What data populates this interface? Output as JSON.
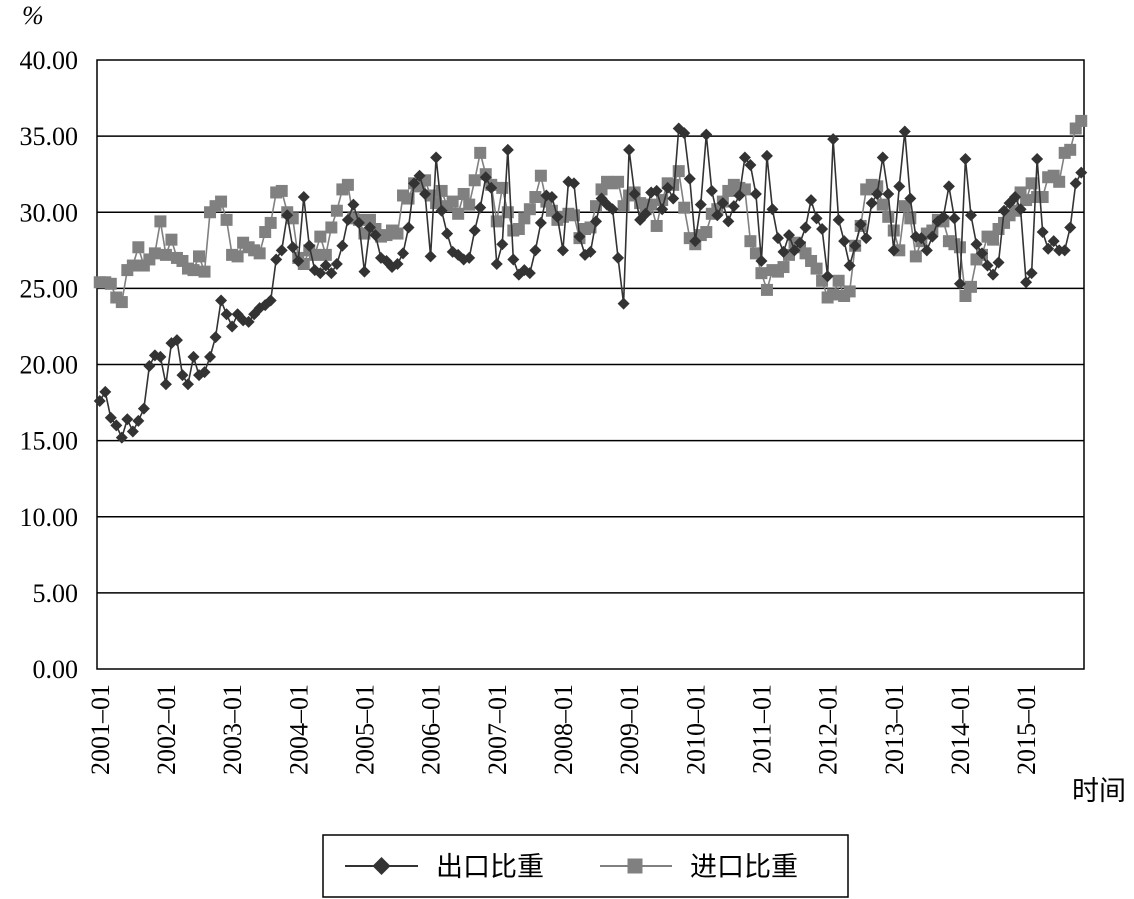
{
  "chart_data": {
    "type": "line",
    "ylabel": "%",
    "xlabel": "时间",
    "ylim": [
      0,
      40
    ],
    "y_ticks": [
      "0.00",
      "5.00",
      "10.00",
      "15.00",
      "20.00",
      "25.00",
      "30.00",
      "35.00",
      "40.00"
    ],
    "x_start": "2001-01",
    "x_end": "2015-09",
    "x_ticks": [
      "2001–01",
      "2002–01",
      "2003–01",
      "2004–01",
      "2005–01",
      "2006–01",
      "2007–01",
      "2008–01",
      "2009–01",
      "2010–01",
      "2011–01",
      "2012–01",
      "2013–01",
      "2014–01",
      "2015–01"
    ],
    "grid": "horizontal",
    "legend_position": "bottom",
    "series": [
      {
        "name": "出口比重",
        "marker": "diamond",
        "color": "#333333",
        "values": [
          17.6,
          18.2,
          16.5,
          16.0,
          15.2,
          16.4,
          15.6,
          16.3,
          17.1,
          19.9,
          20.6,
          20.5,
          18.7,
          21.4,
          21.6,
          19.3,
          18.7,
          20.5,
          19.3,
          19.5,
          20.5,
          21.8,
          24.2,
          23.3,
          22.5,
          23.3,
          22.9,
          22.8,
          23.3,
          23.7,
          23.9,
          24.2,
          26.9,
          27.5,
          29.8,
          27.7,
          26.8,
          31.0,
          27.8,
          26.2,
          26.0,
          26.5,
          26.0,
          26.6,
          27.8,
          29.5,
          30.5,
          29.3,
          26.1,
          29.0,
          28.5,
          27.0,
          26.8,
          26.4,
          26.6,
          27.3,
          29.0,
          31.9,
          32.4,
          31.2,
          27.1,
          33.6,
          30.1,
          28.6,
          27.4,
          27.2,
          26.9,
          27.0,
          28.8,
          30.3,
          32.3,
          31.6,
          26.6,
          27.9,
          34.1,
          26.9,
          25.9,
          26.2,
          26.0,
          27.5,
          29.3,
          31.1,
          31.0,
          29.7,
          27.5,
          32.0,
          31.9,
          28.4,
          27.2,
          27.4,
          29.4,
          30.9,
          30.5,
          30.2,
          27.0,
          24.0,
          34.1,
          31.2,
          29.5,
          29.9,
          31.3,
          31.4,
          30.2,
          31.6,
          30.9,
          35.5,
          35.2,
          32.2,
          28.1,
          30.5,
          35.1,
          31.4,
          29.8,
          30.6,
          29.4,
          30.4,
          31.1,
          33.6,
          33.1,
          31.2,
          26.8,
          33.7,
          30.2,
          28.3,
          27.4,
          28.5,
          27.5,
          28.0,
          29.0,
          30.8,
          29.6,
          28.9,
          25.8,
          34.8,
          29.5,
          28.1,
          26.5,
          27.8,
          29.2,
          28.3,
          30.6,
          31.2,
          33.6,
          31.2,
          27.5,
          31.7,
          35.3,
          30.9,
          28.4,
          28.3,
          27.5,
          28.4,
          29.4,
          29.7,
          31.7,
          29.6,
          25.3,
          33.5,
          29.8,
          27.9,
          27.3,
          26.5,
          25.9,
          26.7,
          30.1,
          30.6,
          31.0,
          30.2,
          25.4,
          26.0,
          33.5,
          28.7,
          27.6,
          28.1,
          27.5,
          27.5,
          29.0,
          31.9,
          32.6
        ]
      },
      {
        "name": "进口比重",
        "marker": "square",
        "color": "#808080",
        "values": [
          25.4,
          25.4,
          25.3,
          24.4,
          24.1,
          26.2,
          26.5,
          27.7,
          26.5,
          26.9,
          27.3,
          29.4,
          27.2,
          28.2,
          27.0,
          26.8,
          26.3,
          26.2,
          27.1,
          26.1,
          30.0,
          30.4,
          30.7,
          29.5,
          27.2,
          27.1,
          28.0,
          27.7,
          27.5,
          27.3,
          28.7,
          29.3,
          31.3,
          31.4,
          30.0,
          29.6,
          27.0,
          26.6,
          27.5,
          27.2,
          28.4,
          27.2,
          29.0,
          30.1,
          31.5,
          31.8,
          29.6,
          29.5,
          28.6,
          29.5,
          28.9,
          28.4,
          28.5,
          28.8,
          28.6,
          31.1,
          30.9,
          31.9,
          31.7,
          32.1,
          31.1,
          30.6,
          31.4,
          30.4,
          30.7,
          29.9,
          31.2,
          30.5,
          32.1,
          33.9,
          32.5,
          31.8,
          29.4,
          31.6,
          30.0,
          28.8,
          28.9,
          29.6,
          30.2,
          31.0,
          32.4,
          30.7,
          30.1,
          29.5,
          29.7,
          29.9,
          29.8,
          28.3,
          28.9,
          29.0,
          30.4,
          31.5,
          32.0,
          31.9,
          32.0,
          30.4,
          31.1,
          31.3,
          30.6,
          30.2,
          30.5,
          29.1,
          30.8,
          31.9,
          31.8,
          32.7,
          30.3,
          28.3,
          27.9,
          28.5,
          28.7,
          29.9,
          30.2,
          30.7,
          31.4,
          31.8,
          31.6,
          31.5,
          28.1,
          27.3,
          26.0,
          24.9,
          26.2,
          26.1,
          26.4,
          27.2,
          28.0,
          27.7,
          27.3,
          26.8,
          26.3,
          25.5,
          24.4,
          24.6,
          25.5,
          24.5,
          24.8,
          27.8,
          29.1,
          31.5,
          31.8,
          31.7,
          30.5,
          29.7,
          28.8,
          27.5,
          30.4,
          29.6,
          27.1,
          28.1,
          28.6,
          28.8,
          29.5,
          29.4,
          28.1,
          27.9,
          27.7,
          24.5,
          25.1,
          26.9,
          27.2,
          28.4,
          28.2,
          28.9,
          29.3,
          29.8,
          30.1,
          31.3,
          30.8,
          31.9,
          31.0,
          31.0,
          32.3,
          32.4,
          32.0,
          33.9,
          34.1,
          35.5,
          36.0
        ]
      }
    ]
  }
}
